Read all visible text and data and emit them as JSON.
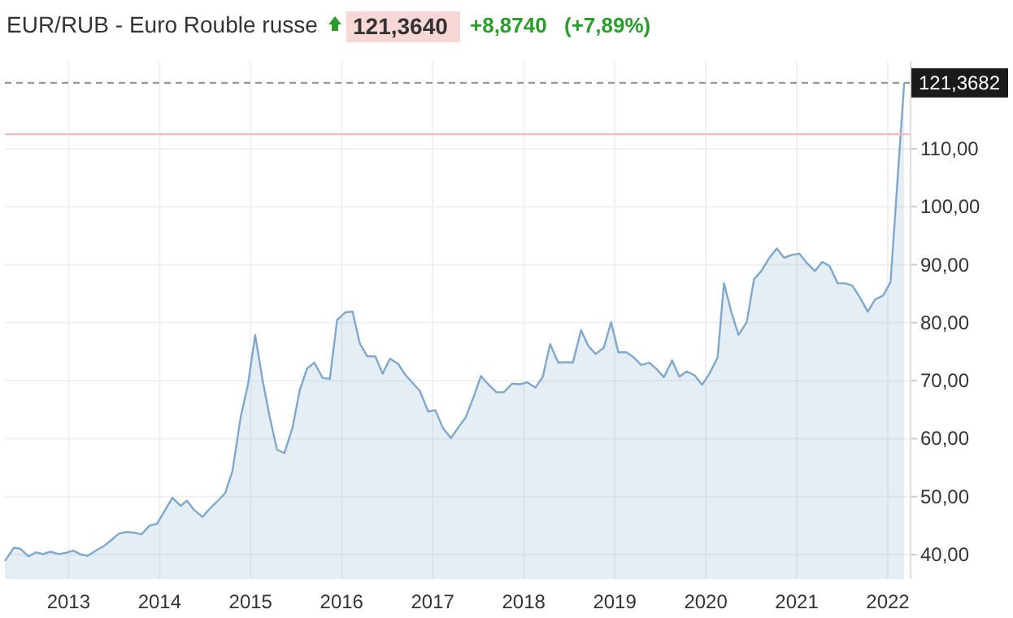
{
  "chart_data": {
    "type": "area",
    "title": "EUR/RUB - Euro Rouble russe",
    "annotations": [
      "121,3640",
      "+8,8740",
      "(+7,89%)"
    ],
    "x": [
      2012.3,
      2012.4,
      2012.47,
      2012.56,
      2012.64,
      2012.72,
      2012.8,
      2012.89,
      2012.97,
      2013.05,
      2013.14,
      2013.21,
      2013.3,
      2013.38,
      2013.47,
      2013.55,
      2013.63,
      2013.72,
      2013.8,
      2013.89,
      2013.97,
      2014.05,
      2014.14,
      2014.23,
      2014.3,
      2014.38,
      2014.47,
      2014.55,
      2014.64,
      2014.72,
      2014.8,
      2014.89,
      2014.97,
      2015.05,
      2015.13,
      2015.21,
      2015.29,
      2015.37,
      2015.46,
      2015.54,
      2015.62,
      2015.7,
      2015.79,
      2015.87,
      2015.95,
      2016.04,
      2016.12,
      2016.2,
      2016.28,
      2016.37,
      2016.45,
      2016.53,
      2016.62,
      2016.7,
      2016.78,
      2016.86,
      2016.95,
      2017.03,
      2017.11,
      2017.2,
      2017.28,
      2017.36,
      2017.45,
      2017.53,
      2017.61,
      2017.7,
      2017.78,
      2017.875,
      2017.96,
      2018.04,
      2018.13,
      2018.21,
      2018.29,
      2018.38,
      2018.46,
      2018.54,
      2018.63,
      2018.71,
      2018.79,
      2018.88,
      2018.96,
      2019.04,
      2019.13,
      2019.21,
      2019.29,
      2019.38,
      2019.46,
      2019.54,
      2019.63,
      2019.71,
      2019.79,
      2019.88,
      2019.96,
      2020.04,
      2020.13,
      2020.2,
      2020.28,
      2020.36,
      2020.45,
      2020.53,
      2020.61,
      2020.7,
      2020.78,
      2020.86,
      2020.95,
      2021.03,
      2021.11,
      2021.2,
      2021.28,
      2021.36,
      2021.45,
      2021.53,
      2021.61,
      2021.7,
      2021.78,
      2021.86,
      2021.95,
      2022.03,
      2022.18
    ],
    "series": [
      {
        "color": "#7fa8cc",
        "values": [
          38.9,
          41.2,
          41.0,
          39.7,
          40.4,
          40.1,
          40.5,
          40.1,
          40.3,
          40.7,
          40.0,
          39.8,
          40.7,
          41.4,
          42.5,
          43.6,
          43.9,
          43.8,
          43.5,
          45.0,
          45.3,
          47.4,
          49.8,
          48.4,
          49.3,
          47.7,
          46.5,
          47.9,
          49.3,
          50.6,
          54.4,
          63.7,
          69.3,
          77.9,
          70.2,
          63.7,
          58.1,
          57.5,
          61.9,
          68.4,
          72.1,
          73.1,
          70.5,
          70.3,
          80.5,
          81.8,
          81.9,
          76.4,
          74.2,
          74.2,
          71.2,
          73.8,
          72.9,
          71.0,
          69.6,
          68.2,
          64.7,
          64.9,
          61.9,
          60.1,
          61.9,
          63.6,
          67.2,
          70.8,
          69.4,
          68.0,
          68.0,
          69.5,
          69.4,
          69.7,
          68.8,
          70.7,
          76.3,
          73.1,
          73.2,
          73.1,
          78.7,
          76.0,
          74.6,
          75.7,
          80.1,
          74.9,
          74.9,
          74.0,
          72.7,
          73.1,
          72.0,
          70.6,
          73.5,
          70.7,
          71.6,
          70.9,
          69.3,
          71.2,
          74.0,
          86.8,
          81.9,
          77.9,
          80.1,
          87.5,
          88.9,
          91.2,
          92.8,
          91.2,
          91.7,
          91.9,
          90.3,
          88.9,
          90.5,
          89.8,
          86.8,
          86.8,
          86.4,
          84.2,
          81.9,
          84.0,
          84.7,
          87.0,
          121.4
        ]
      }
    ],
    "xlim": [
      2012.3,
      2022.25
    ],
    "xticks": [
      2013,
      2014,
      2015,
      2016,
      2017,
      2018,
      2019,
      2020,
      2021,
      2022
    ],
    "ylim": [
      35.8,
      125
    ],
    "yticks": [
      {
        "value": 40,
        "label": "40,00"
      },
      {
        "value": 50,
        "label": "50,00"
      },
      {
        "value": 60,
        "label": "60,00"
      },
      {
        "value": 70,
        "label": "70,00"
      },
      {
        "value": 80,
        "label": "80,00"
      },
      {
        "value": 90,
        "label": "90,00"
      },
      {
        "value": 100,
        "label": "100,00"
      },
      {
        "value": 110,
        "label": "110,00"
      }
    ],
    "grid": true,
    "ref_lines": [
      {
        "axis": "y",
        "value": 112.5,
        "label": null,
        "color": "#f2b8bd",
        "line_style": "solid"
      },
      {
        "axis": "y",
        "value": 121.3682,
        "label": "121,3682",
        "color": "#999999",
        "line_style": "dashed"
      }
    ]
  }
}
